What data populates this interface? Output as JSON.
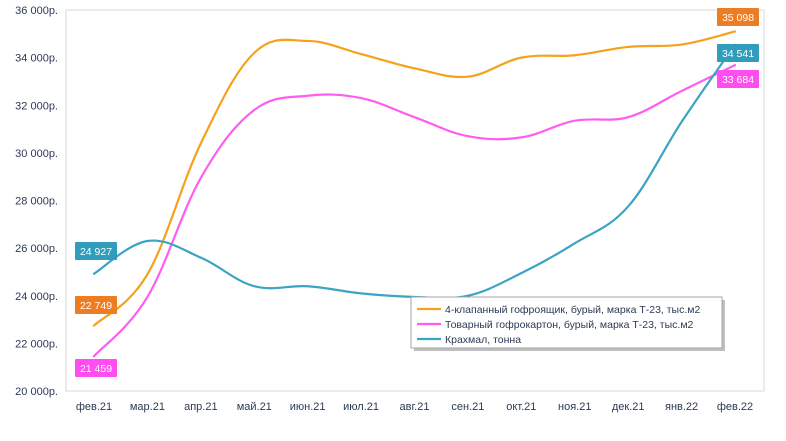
{
  "chart_data": {
    "type": "line",
    "categories": [
      "фев.21",
      "мар.21",
      "апр.21",
      "май.21",
      "июн.21",
      "июл.21",
      "авг.21",
      "сен.21",
      "окт.21",
      "ноя.21",
      "дек.21",
      "янв.22",
      "фев.22"
    ],
    "y_tick_labels": [
      "20 000р.",
      "22 000р.",
      "24 000р.",
      "26 000р.",
      "28 000р.",
      "30 000р.",
      "32 000р.",
      "34 000р.",
      "36 000р."
    ],
    "ylim": [
      20000,
      36000
    ],
    "grid": false,
    "legend_position": "bottom-right",
    "series": [
      {
        "name": "4-клапанный гофроящик, бурый, марка Т-23, тыс.м2",
        "color": "#f5a11c",
        "label_color": "#ee7d22",
        "values": [
          22749,
          24900,
          30400,
          34200,
          34700,
          34150,
          33550,
          33200,
          34000,
          34100,
          34450,
          34550,
          35098
        ],
        "labels": [
          {
            "index": 0,
            "text": "22 749"
          },
          {
            "index": 12,
            "text": "35 098"
          }
        ]
      },
      {
        "name": "Товарный гофрокартон, бурый, марка Т-23, тыс.м2",
        "color": "#ff5cf0",
        "label_color": "#ff4df0",
        "values": [
          21459,
          23950,
          28950,
          31800,
          32400,
          32300,
          31500,
          30700,
          30650,
          31350,
          31500,
          32600,
          33684
        ],
        "labels": [
          {
            "index": 0,
            "text": "21 459"
          },
          {
            "index": 12,
            "text": "33 684"
          }
        ]
      },
      {
        "name": "Крахмал, тонна",
        "color": "#3ba3c3",
        "label_color": "#2f9dbb",
        "values": [
          24927,
          26300,
          25600,
          24400,
          24400,
          24100,
          23950,
          24000,
          24950,
          26200,
          27750,
          31300,
          34541
        ],
        "labels": [
          {
            "index": 0,
            "text": "24 927"
          },
          {
            "index": 12,
            "text": "34 541"
          }
        ]
      }
    ]
  }
}
